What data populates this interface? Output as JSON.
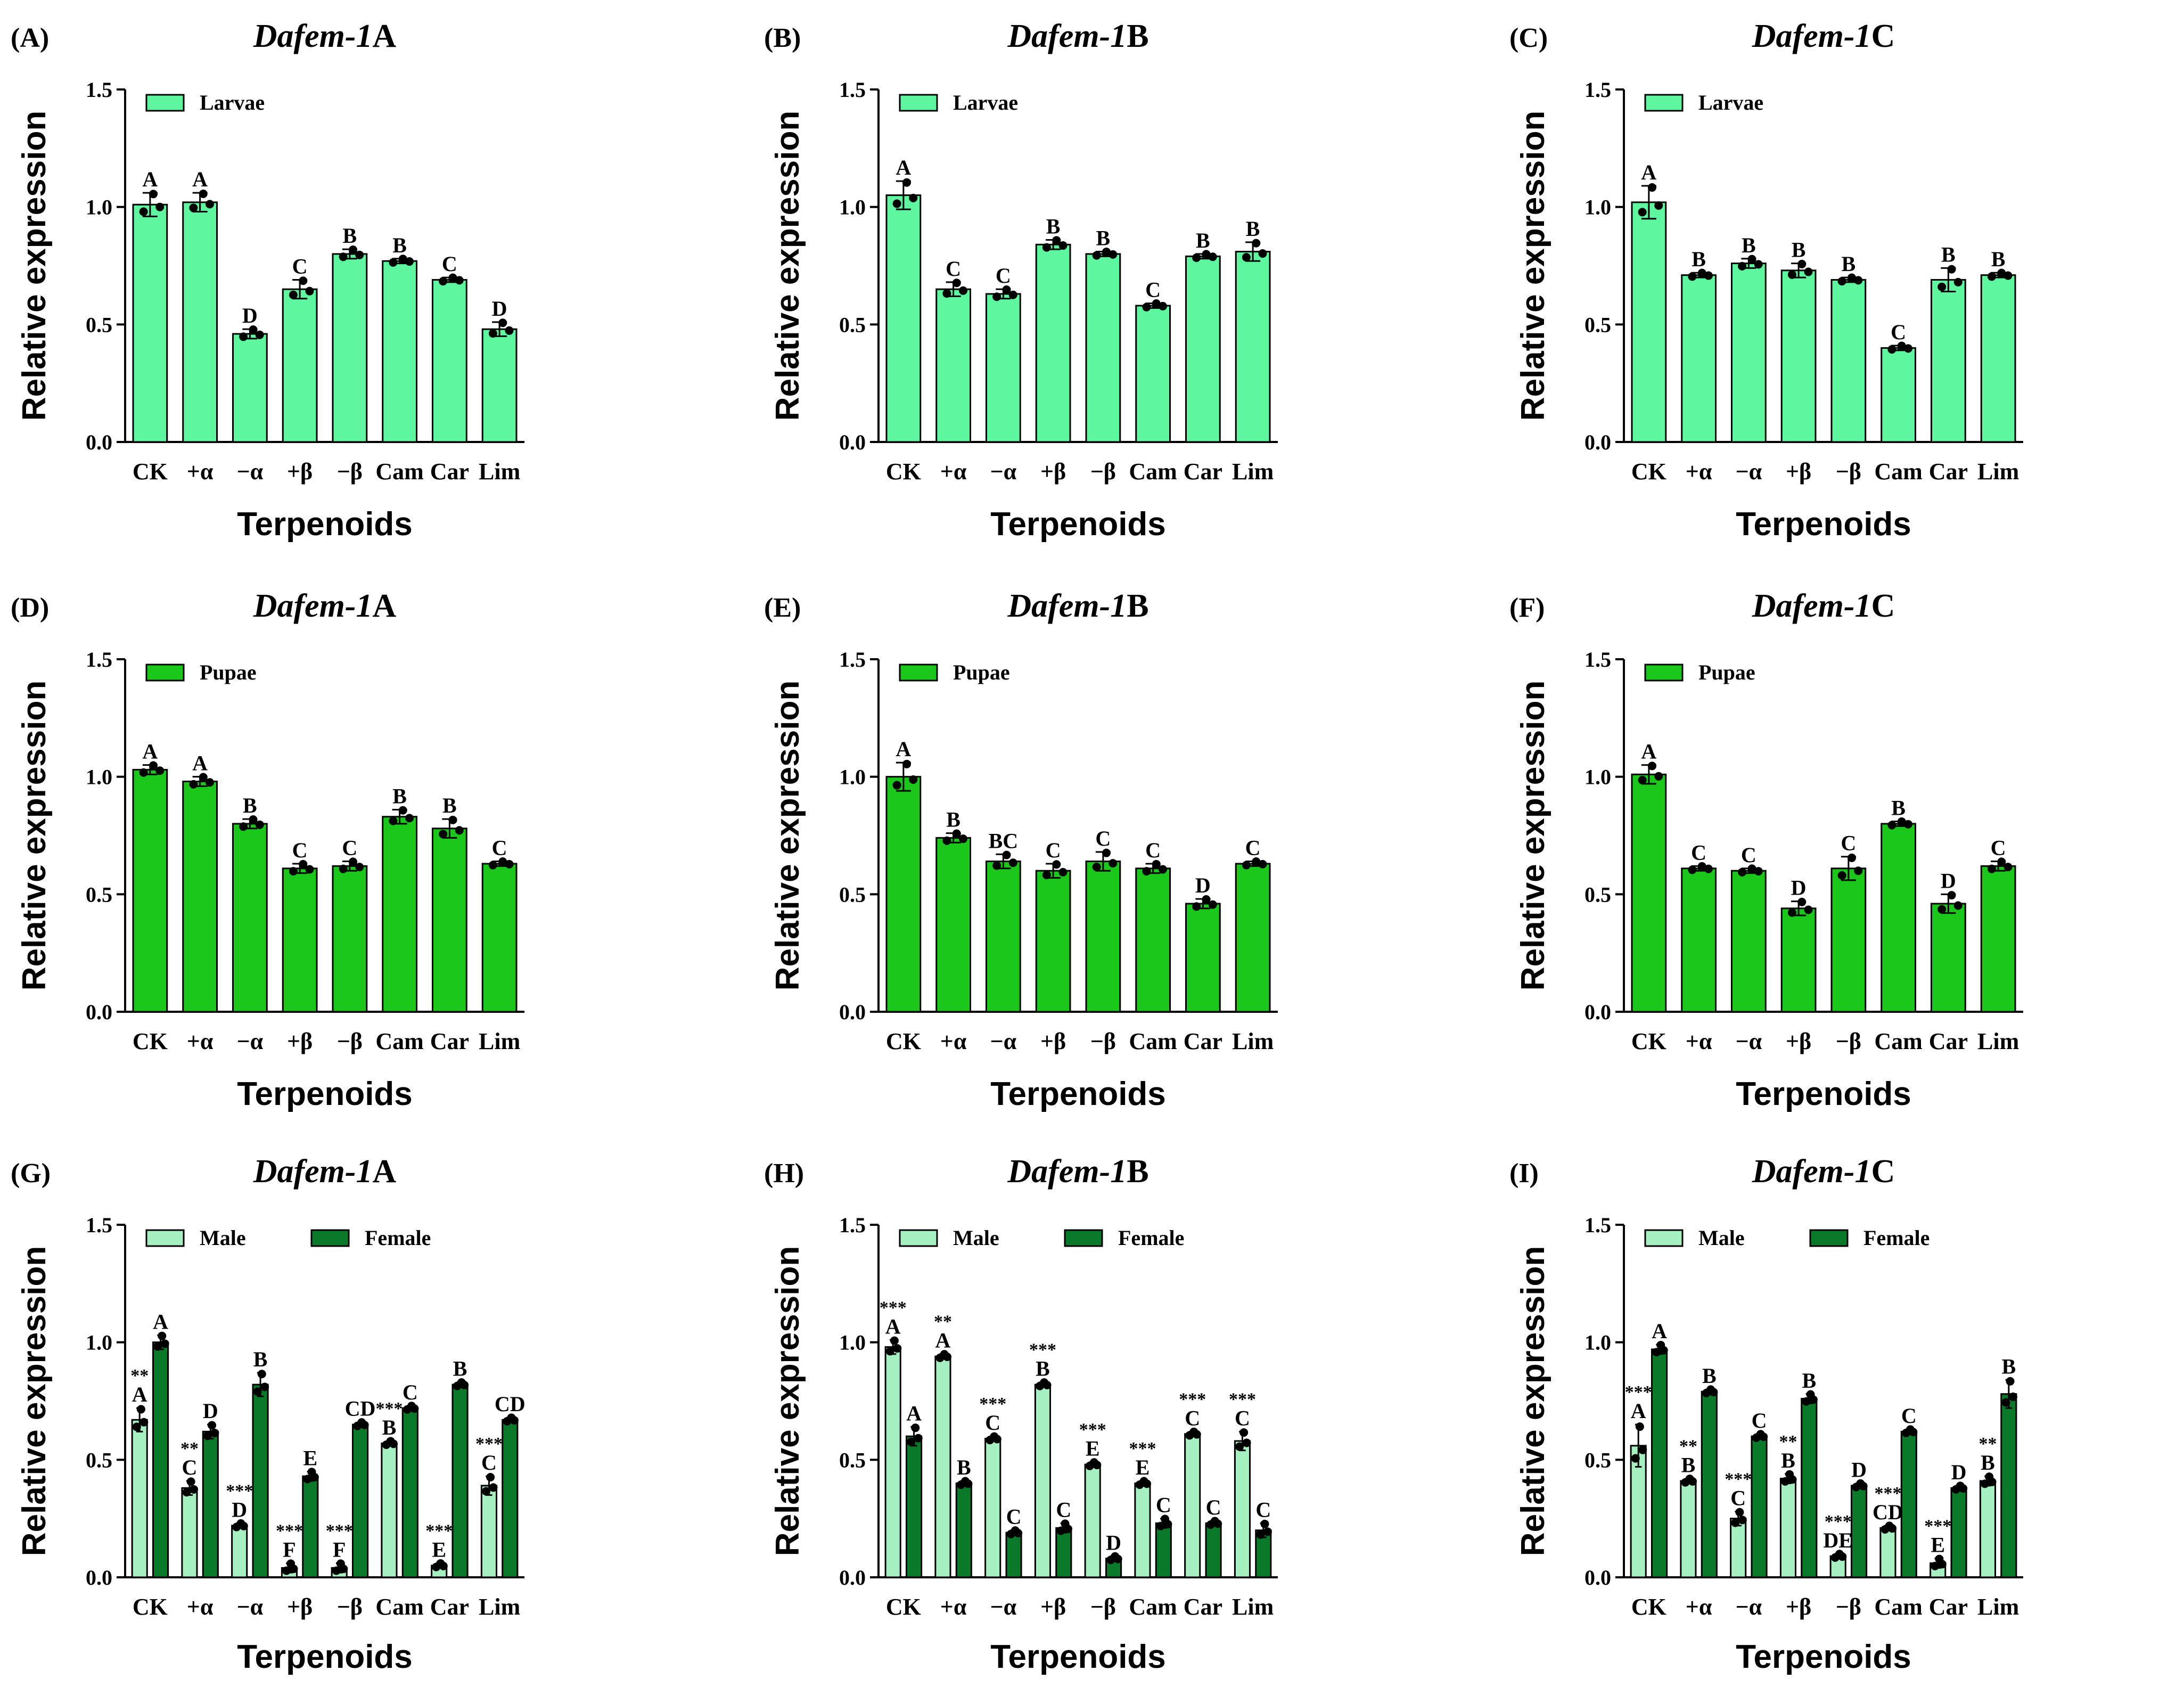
{
  "chart_data": [
    {
      "type": "bar",
      "panel_label": "(A)",
      "title_gene": "Dafem-1",
      "title_suffix": "A",
      "xlabel": "Terpenoids",
      "ylabel": "Relative expression",
      "ylim": [
        0,
        1.5
      ],
      "yticks": [
        "0.0",
        "0.5",
        "1.0",
        "1.5"
      ],
      "categories": [
        "CK",
        "+α",
        "−α",
        "+β",
        "−β",
        "Cam",
        "Car",
        "Lim"
      ],
      "series": [
        {
          "name": "Larvae",
          "color": "#5EF7A0",
          "values": [
            1.01,
            1.02,
            0.46,
            0.65,
            0.8,
            0.77,
            0.69,
            0.48
          ],
          "errors": [
            0.05,
            0.04,
            0.02,
            0.04,
            0.02,
            0.01,
            0.01,
            0.03
          ],
          "letters": [
            "A",
            "A",
            "D",
            "C",
            "B",
            "B",
            "C",
            "D"
          ]
        }
      ]
    },
    {
      "type": "bar",
      "panel_label": "(B)",
      "title_gene": "Dafem-1",
      "title_suffix": "B",
      "xlabel": "Terpenoids",
      "ylabel": "Relative expression",
      "ylim": [
        0,
        1.5
      ],
      "yticks": [
        "0.0",
        "0.5",
        "1.0",
        "1.5"
      ],
      "categories": [
        "CK",
        "+α",
        "−α",
        "+β",
        "−β",
        "Cam",
        "Car",
        "Lim"
      ],
      "series": [
        {
          "name": "Larvae",
          "color": "#5EF7A0",
          "values": [
            1.05,
            0.65,
            0.63,
            0.84,
            0.8,
            0.58,
            0.79,
            0.81
          ],
          "errors": [
            0.06,
            0.03,
            0.02,
            0.02,
            0.01,
            0.01,
            0.01,
            0.04
          ],
          "letters": [
            "A",
            "C",
            "C",
            "B",
            "B",
            "C",
            "B",
            "B"
          ]
        }
      ]
    },
    {
      "type": "bar",
      "panel_label": "(C)",
      "title_gene": "Dafem-1",
      "title_suffix": "C",
      "xlabel": "Terpenoids",
      "ylabel": "Relative expression",
      "ylim": [
        0,
        1.5
      ],
      "yticks": [
        "0.0",
        "0.5",
        "1.0",
        "1.5"
      ],
      "categories": [
        "CK",
        "+α",
        "−α",
        "+β",
        "−β",
        "Cam",
        "Car",
        "Lim"
      ],
      "series": [
        {
          "name": "Larvae",
          "color": "#5EF7A0",
          "values": [
            1.02,
            0.71,
            0.76,
            0.73,
            0.69,
            0.4,
            0.69,
            0.71
          ],
          "errors": [
            0.07,
            0.01,
            0.02,
            0.03,
            0.01,
            0.01,
            0.05,
            0.01
          ],
          "letters": [
            "A",
            "B",
            "B",
            "B",
            "B",
            "C",
            "B",
            "B"
          ]
        }
      ]
    },
    {
      "type": "bar",
      "panel_label": "(D)",
      "title_gene": "Dafem-1",
      "title_suffix": "A",
      "xlabel": "Terpenoids",
      "ylabel": "Relative expression",
      "ylim": [
        0,
        1.5
      ],
      "yticks": [
        "0.0",
        "0.5",
        "1.0",
        "1.5"
      ],
      "categories": [
        "CK",
        "+α",
        "−α",
        "+β",
        "−β",
        "Cam",
        "Car",
        "Lim"
      ],
      "series": [
        {
          "name": "Pupae",
          "color": "#1AC71A",
          "values": [
            1.03,
            0.98,
            0.8,
            0.61,
            0.62,
            0.83,
            0.78,
            0.63
          ],
          "errors": [
            0.02,
            0.02,
            0.02,
            0.02,
            0.02,
            0.03,
            0.04,
            0.01
          ],
          "letters": [
            "A",
            "A",
            "B",
            "C",
            "C",
            "B",
            "B",
            "C"
          ]
        }
      ]
    },
    {
      "type": "bar",
      "panel_label": "(E)",
      "title_gene": "Dafem-1",
      "title_suffix": "B",
      "xlabel": "Terpenoids",
      "ylabel": "Relative expression",
      "ylim": [
        0,
        1.5
      ],
      "yticks": [
        "0.0",
        "0.5",
        "1.0",
        "1.5"
      ],
      "categories": [
        "CK",
        "+α",
        "−α",
        "+β",
        "−β",
        "Cam",
        "Car",
        "Lim"
      ],
      "series": [
        {
          "name": "Pupae",
          "color": "#1AC71A",
          "values": [
            1.0,
            0.74,
            0.64,
            0.6,
            0.64,
            0.61,
            0.46,
            0.63
          ],
          "errors": [
            0.06,
            0.02,
            0.03,
            0.03,
            0.04,
            0.02,
            0.02,
            0.01
          ],
          "letters": [
            "A",
            "B",
            "BC",
            "C",
            "C",
            "C",
            "D",
            "C"
          ]
        }
      ]
    },
    {
      "type": "bar",
      "panel_label": "(F)",
      "title_gene": "Dafem-1",
      "title_suffix": "C",
      "xlabel": "Terpenoids",
      "ylabel": "Relative expression",
      "ylim": [
        0,
        1.5
      ],
      "yticks": [
        "0.0",
        "0.5",
        "1.0",
        "1.5"
      ],
      "categories": [
        "CK",
        "+α",
        "−α",
        "+β",
        "−β",
        "Cam",
        "Car",
        "Lim"
      ],
      "series": [
        {
          "name": "Pupae",
          "color": "#1AC71A",
          "values": [
            1.01,
            0.61,
            0.6,
            0.44,
            0.61,
            0.8,
            0.46,
            0.62
          ],
          "errors": [
            0.04,
            0.01,
            0.01,
            0.03,
            0.05,
            0.01,
            0.04,
            0.02
          ],
          "letters": [
            "A",
            "C",
            "C",
            "D",
            "C",
            "B",
            "D",
            "C"
          ]
        }
      ]
    },
    {
      "type": "bar",
      "panel_label": "(G)",
      "title_gene": "Dafem-1",
      "title_suffix": "A",
      "xlabel": "Terpenoids",
      "ylabel": "Relative expression",
      "ylim": [
        0,
        1.5
      ],
      "yticks": [
        "0.0",
        "0.5",
        "1.0",
        "1.5"
      ],
      "categories": [
        "CK",
        "+α",
        "−α",
        "+β",
        "−β",
        "Cam",
        "Car",
        "Lim"
      ],
      "series": [
        {
          "name": "Male",
          "color": "#A6EFC1",
          "values": [
            0.67,
            0.38,
            0.22,
            0.04,
            0.04,
            0.57,
            0.05,
            0.39
          ],
          "errors": [
            0.05,
            0.03,
            0.01,
            0.02,
            0.02,
            0.01,
            0.01,
            0.04
          ],
          "letters": [
            "A",
            "C",
            "D",
            "F",
            "F",
            "B",
            "E",
            "C"
          ],
          "stars": [
            "**",
            "**",
            "***",
            "***",
            "***",
            "***",
            "***",
            "***"
          ]
        },
        {
          "name": "Female",
          "color": "#0A7A2A",
          "values": [
            1.0,
            0.62,
            0.82,
            0.43,
            0.65,
            0.72,
            0.82,
            0.67
          ],
          "errors": [
            0.03,
            0.03,
            0.05,
            0.02,
            0.01,
            0.01,
            0.01,
            0.01
          ],
          "letters": [
            "A",
            "D",
            "B",
            "E",
            "CD",
            "C",
            "B",
            "CD"
          ]
        }
      ]
    },
    {
      "type": "bar",
      "panel_label": "(H)",
      "title_gene": "Dafem-1",
      "title_suffix": "B",
      "xlabel": "Terpenoids",
      "ylabel": "Relative expression",
      "ylim": [
        0,
        1.5
      ],
      "yticks": [
        "0.0",
        "0.5",
        "1.0",
        "1.5"
      ],
      "categories": [
        "CK",
        "+α",
        "−α",
        "+β",
        "−β",
        "Cam",
        "Car",
        "Lim"
      ],
      "series": [
        {
          "name": "Male",
          "color": "#A6EFC1",
          "values": [
            0.98,
            0.94,
            0.59,
            0.82,
            0.48,
            0.4,
            0.61,
            0.58
          ],
          "errors": [
            0.03,
            0.01,
            0.01,
            0.01,
            0.01,
            0.01,
            0.01,
            0.04
          ],
          "letters": [
            "A",
            "A",
            "C",
            "B",
            "E",
            "E",
            "C",
            "C"
          ],
          "stars": [
            "***",
            "**",
            "***",
            "***",
            "***",
            "***",
            "***",
            "***"
          ]
        },
        {
          "name": "Female",
          "color": "#0A7A2A",
          "values": [
            0.6,
            0.4,
            0.19,
            0.21,
            0.08,
            0.23,
            0.23,
            0.2
          ],
          "errors": [
            0.04,
            0.01,
            0.01,
            0.02,
            0.01,
            0.02,
            0.01,
            0.03
          ],
          "letters": [
            "A",
            "B",
            "C",
            "C",
            "D",
            "C",
            "C",
            "C"
          ]
        }
      ]
    },
    {
      "type": "bar",
      "panel_label": "(I)",
      "title_gene": "Dafem-1",
      "title_suffix": "C",
      "xlabel": "Terpenoids",
      "ylabel": "Relative expression",
      "ylim": [
        0,
        1.5
      ],
      "yticks": [
        "0.0",
        "0.5",
        "1.0",
        "1.5"
      ],
      "categories": [
        "CK",
        "+α",
        "−α",
        "+β",
        "−β",
        "Cam",
        "Car",
        "Lim"
      ],
      "series": [
        {
          "name": "Male",
          "color": "#A6EFC1",
          "values": [
            0.56,
            0.41,
            0.25,
            0.42,
            0.09,
            0.21,
            0.06,
            0.41
          ],
          "errors": [
            0.09,
            0.01,
            0.03,
            0.02,
            0.01,
            0.01,
            0.02,
            0.02
          ],
          "letters": [
            "A",
            "B",
            "C",
            "B",
            "DE",
            "CD",
            "E",
            "B"
          ],
          "stars": [
            "***",
            "**",
            "***",
            "**",
            "***",
            "***",
            "***",
            "**"
          ]
        },
        {
          "name": "Female",
          "color": "#0A7A2A",
          "values": [
            0.97,
            0.79,
            0.6,
            0.76,
            0.39,
            0.62,
            0.38,
            0.78
          ],
          "errors": [
            0.02,
            0.01,
            0.01,
            0.02,
            0.01,
            0.01,
            0.01,
            0.06
          ],
          "letters": [
            "A",
            "B",
            "C",
            "B",
            "D",
            "C",
            "D",
            "B"
          ]
        }
      ]
    }
  ]
}
